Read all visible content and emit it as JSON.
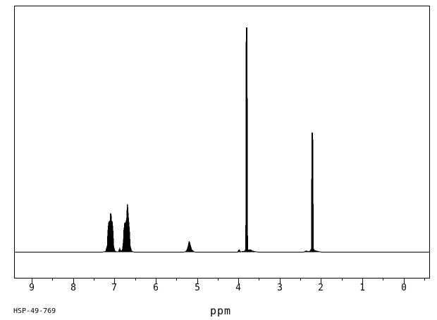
{
  "page": {
    "background": "#ffffff",
    "foreground": "#000000"
  },
  "footer": {
    "sample_id": "HSP-49-769"
  },
  "chart_data": {
    "type": "line",
    "xlabel": "ppm",
    "xlim": [
      9.41,
      -0.62
    ],
    "ylim": [
      0,
      1.1
    ],
    "grid": false,
    "legend": false,
    "x_ticks": [
      9,
      8,
      7,
      6,
      5,
      4,
      3,
      2,
      1,
      0
    ],
    "x_tick_labels": [
      "9",
      "8",
      "7",
      "6",
      "5",
      "4",
      "3",
      "2",
      "1",
      "0"
    ],
    "minor_ticks": [
      8.5,
      7.5,
      6.5,
      5.5,
      4.5,
      3.5,
      2.5,
      1.5,
      0.5,
      -0.5
    ],
    "peaks": [
      {
        "ppm": 7.09,
        "rel_intensity": 0.17,
        "shape": "multiplet"
      },
      {
        "ppm": 6.69,
        "rel_intensity": 0.21,
        "shape": "multiplet"
      },
      {
        "ppm": 5.18,
        "rel_intensity": 0.05,
        "shape": "small broad singlet"
      },
      {
        "ppm": 3.8,
        "rel_intensity": 1.0,
        "shape": "singlet"
      },
      {
        "ppm": 2.21,
        "rel_intensity": 0.53,
        "shape": "singlet"
      }
    ],
    "points": [
      [
        9.41,
        0
      ],
      [
        7.3,
        0
      ],
      [
        7.21,
        0.003
      ],
      [
        7.17,
        0.03
      ],
      [
        7.16,
        0.086
      ],
      [
        7.14,
        0.13
      ],
      [
        7.12,
        0.137
      ],
      [
        7.1,
        0.14
      ],
      [
        7.095,
        0.171
      ],
      [
        7.08,
        0.171
      ],
      [
        7.07,
        0.14
      ],
      [
        7.05,
        0.133
      ],
      [
        7.03,
        0.086
      ],
      [
        7.02,
        0.03
      ],
      [
        6.99,
        0.005
      ],
      [
        6.95,
        0.002
      ],
      [
        6.9,
        0.002
      ],
      [
        6.87,
        0.017
      ],
      [
        6.86,
        0.008
      ],
      [
        6.82,
        0.005
      ],
      [
        6.8,
        0.017
      ],
      [
        6.78,
        0.055
      ],
      [
        6.77,
        0.102
      ],
      [
        6.76,
        0.111
      ],
      [
        6.75,
        0.133
      ],
      [
        6.73,
        0.124
      ],
      [
        6.71,
        0.143
      ],
      [
        6.7,
        0.155
      ],
      [
        6.69,
        0.212
      ],
      [
        6.68,
        0.212
      ],
      [
        6.66,
        0.155
      ],
      [
        6.65,
        0.133
      ],
      [
        6.63,
        0.08
      ],
      [
        6.62,
        0.03
      ],
      [
        6.59,
        0.008
      ],
      [
        6.56,
        0.002
      ],
      [
        6.5,
        0
      ],
      [
        5.32,
        0
      ],
      [
        5.27,
        0.003
      ],
      [
        5.24,
        0.011
      ],
      [
        5.21,
        0.03
      ],
      [
        5.19,
        0.049
      ],
      [
        5.16,
        0.03
      ],
      [
        5.13,
        0.011
      ],
      [
        5.09,
        0.003
      ],
      [
        5.04,
        0
      ],
      [
        4.02,
        0
      ],
      [
        3.98,
        0.011
      ],
      [
        3.95,
        0.002
      ],
      [
        3.87,
        0.003
      ],
      [
        3.84,
        0.006
      ],
      [
        3.82,
        0.017
      ],
      [
        3.81,
        1.0
      ],
      [
        3.79,
        1.0
      ],
      [
        3.775,
        0.017
      ],
      [
        3.76,
        0.009
      ],
      [
        3.71,
        0.011
      ],
      [
        3.66,
        0.005
      ],
      [
        3.58,
        0.002
      ],
      [
        3.5,
        0
      ],
      [
        2.42,
        0
      ],
      [
        2.36,
        0.006
      ],
      [
        2.31,
        0.002
      ],
      [
        2.26,
        0.005
      ],
      [
        2.23,
        0.017
      ],
      [
        2.22,
        0.532
      ],
      [
        2.2,
        0.532
      ],
      [
        2.185,
        0.017
      ],
      [
        2.16,
        0.008
      ],
      [
        2.11,
        0.005
      ],
      [
        2.04,
        0.002
      ],
      [
        1.98,
        0
      ],
      [
        -0.62,
        0
      ]
    ]
  }
}
